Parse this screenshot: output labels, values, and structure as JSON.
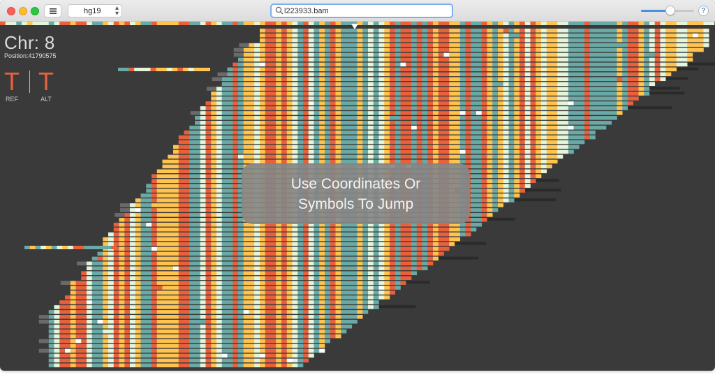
{
  "window": {
    "genome": "hg19",
    "search": {
      "value": "l223933.bam",
      "placeholder": ""
    },
    "zoom_level": 0.55,
    "help_label": "?"
  },
  "locus": {
    "chr_label": "Chr: 8",
    "position_label": "Position:41790575"
  },
  "variant": {
    "ref_base": "T",
    "ref_label": "REF",
    "alt_base": "T",
    "alt_label": "ALT",
    "base_color": "#e8603c"
  },
  "toast": {
    "line1": "Use Coordinates Or",
    "line2": "Symbols To Jump"
  },
  "colors": {
    "background": "#3a3a3a",
    "A": "#e8603c",
    "C": "#fec44f",
    "G": "#6aa9a6",
    "T": "#e4f5dc",
    "softclip": "#6a6a6a",
    "read_end": "#2a2a2a",
    "gap": "#ffffff"
  },
  "icons": [
    "menu-icon",
    "chevron-updown-icon",
    "search-icon",
    "help-icon",
    "position-marker-icon"
  ]
}
